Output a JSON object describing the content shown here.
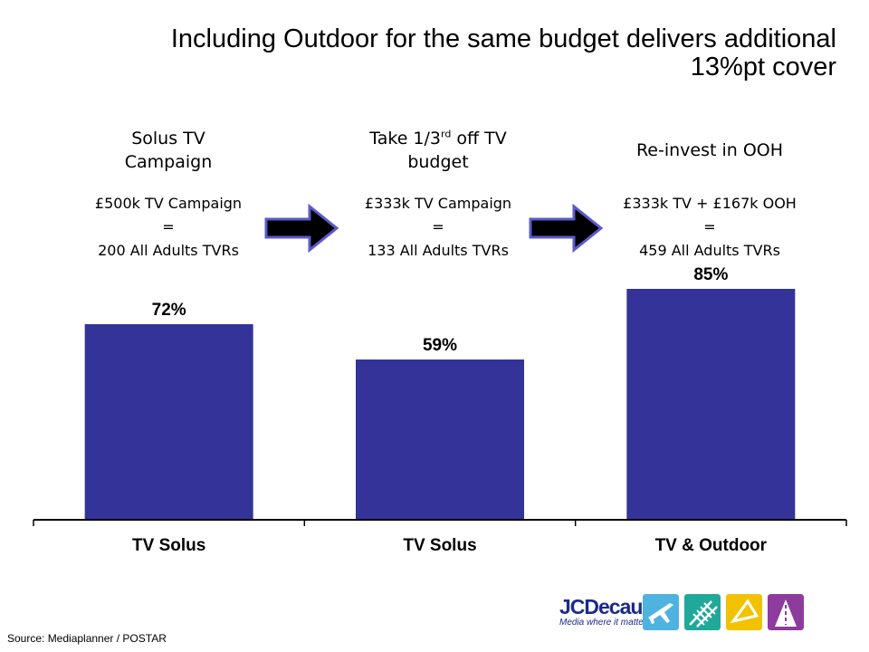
{
  "title": {
    "line1": "Including Outdoor for the same budget delivers additional",
    "line2": "13%pt cover"
  },
  "steps": [
    {
      "head_line1": "Solus TV",
      "head_line2": "Campaign",
      "line1": "£500k TV Campaign",
      "line2": "=",
      "line3": "200 All Adults TVRs"
    },
    {
      "head_pre": "Take 1/3",
      "head_sup": "rd",
      "head_post": " off TV",
      "head_line2": "budget",
      "line1": "£333k TV Campaign",
      "line2": "=",
      "line3": "133 All Adults TVRs"
    },
    {
      "head_line1": "Re-invest in OOH",
      "line1": "£333k TV + £167k OOH",
      "line2": "=",
      "line3": "459 All Adults TVRs"
    }
  ],
  "chart_data": {
    "type": "bar",
    "categories": [
      "TV Solus",
      "TV Solus",
      "TV & Outdoor"
    ],
    "values": [
      72,
      59,
      85
    ],
    "value_labels": [
      "72%",
      "59%",
      "85%"
    ],
    "ylim": [
      0,
      100
    ],
    "grid": false,
    "legend": "none",
    "colors": {
      "bar": "#333399"
    }
  },
  "source": "Source: Mediaplanner / POSTAR",
  "logo": {
    "name": "JCDecaux",
    "tagline": "Media where it matters"
  },
  "colors": {
    "tile1": "#4fb3e0",
    "tile2": "#20a89a",
    "tile3": "#f2c200",
    "tile4": "#8e3b9e"
  }
}
